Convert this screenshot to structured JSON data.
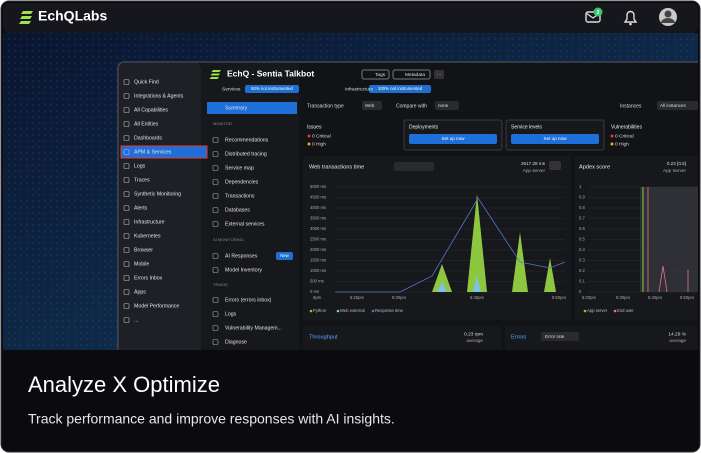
{
  "header": {
    "brand": "EchQLabs",
    "mail_badge": "2"
  },
  "sidebar": {
    "items": [
      "Quick Find",
      "Integrations & Agents",
      "All Capabilities",
      "All Entities",
      "Dashboards",
      "APM & Services",
      "Logs",
      "Traces",
      "Synthetic Monitoring",
      "Alerts",
      "Infrastructure",
      "Kubernetes",
      "Browser",
      "Mobile",
      "Errors Inbox",
      "Apps",
      "Model Performance",
      "..."
    ]
  },
  "service": {
    "title": "EchQ - Sentia Talkbot",
    "tags": "Tags",
    "metadata": "Metadata",
    "more": "···",
    "services_label": "Services",
    "services_status": "50% not instrumented",
    "infra_label": "Infrastructure",
    "infra_status": "100% not instrumented"
  },
  "nav": {
    "items": [
      "Summary",
      "MONITOR",
      "Recommendations",
      "Distributed tracing",
      "Service map",
      "Dependencies",
      "Transactions",
      "Databases",
      "External services",
      "AI MONITORING",
      "AI Responses",
      "Model Inventory",
      "TRIAGE",
      "Errors (errors inbox)",
      "Logs",
      "Vulnerability Managem...",
      "Diagnose"
    ],
    "new_badge": "New"
  },
  "filters": {
    "transaction_type": "Transaction type",
    "web": "Web",
    "compare_with": "Compare with",
    "none": "none",
    "instances": "Instances",
    "all_instances": "All instances"
  },
  "cards": {
    "issues": {
      "title": "Issues",
      "critical": "0 Critical",
      "high": "0 High"
    },
    "deployments": {
      "title": "Deployments",
      "button": "Set up now"
    },
    "service_levels": {
      "title": "Service levels",
      "button": "Set up now"
    },
    "vulnerabilities": {
      "title": "Vulnerabilities",
      "critical": "0 Critical",
      "high": "0 High"
    }
  },
  "web_chart": {
    "title": "Web transactions time",
    "value": "2617.28 ms",
    "value_label": "App server",
    "yticks": [
      "5000 ms",
      "4500 ms",
      "4000 ms",
      "3500 ms",
      "3000 ms",
      "2500 ms",
      "2000 ms",
      "1500 ms",
      "1000 ms",
      "500 ms",
      "0 ms"
    ],
    "xticks": [
      "6pm",
      "6:25pm",
      "6:30pm",
      "6:45pm",
      "6:50pm"
    ],
    "legend": [
      "Python",
      "Web external",
      "Response time"
    ]
  },
  "apdex": {
    "title": "Apdex score",
    "value": "0.23 [0.5]",
    "value_label": "App Server",
    "yticks": [
      "1",
      "0.9",
      "0.8",
      "0.7",
      "0.6",
      "0.5",
      "0.4",
      "0.3",
      "0.2",
      "0.1",
      "0"
    ],
    "xticks": [
      "6:20pm",
      "6:30pm",
      "6:40pm",
      "6:50pm"
    ],
    "legend": [
      "App server",
      "End user"
    ]
  },
  "throughput": {
    "title": "Throughput",
    "value": "0.23 rpm",
    "value_label": "average"
  },
  "errors": {
    "title": "Errors",
    "selector": "Error rate",
    "value": "14.29 %",
    "value_label": "average"
  },
  "caption": {
    "title": "Analyze X Optimize",
    "subtitle": "Track performance and improve responses with AI insights."
  }
}
